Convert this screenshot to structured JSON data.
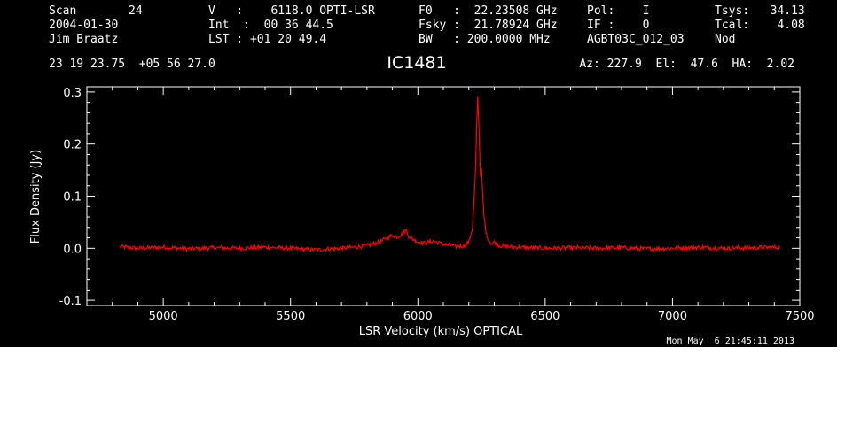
{
  "header": {
    "scan_label": "Scan",
    "scan_value": "24",
    "date": "2004-01-30",
    "observer": "Jim Braatz",
    "velocity": "V   :    6118.0 OPTI-LSR",
    "int_time": "Int  :  00 36 44.5",
    "lst": "LST : +01 20 49.4",
    "f0": "F0   :  22.23508 GHz",
    "fsky": "Fsky :  21.78924 GHz",
    "bw": "BW   : 200.0000 MHz",
    "pol": "Pol:    I",
    "if": "IF :    0",
    "project": "AGBT03C_012_03",
    "tsys": "Tsys:   34.13",
    "tcal": "Tcal:    4.08",
    "mode": "Nod",
    "coords": "23 19 23.75  +05 56 27.0",
    "source": "IC1481",
    "pointing": "Az: 227.9  El:  47.6  HA:  2.02",
    "timestamp": "Mon May  6 21:45:11 2013"
  },
  "colors": {
    "background": "#000000",
    "foreground": "#ffffff",
    "spectrum": "#ff0000"
  },
  "chart_data": {
    "type": "line",
    "title": "IC1481",
    "xlabel": "LSR Velocity (km/s) OPTICAL",
    "ylabel": "Flux Density (Jy)",
    "xlim": [
      4700,
      7500
    ],
    "ylim": [
      -0.11,
      0.31
    ],
    "x_ticks": [
      5000,
      5500,
      6000,
      6500,
      7000,
      7500
    ],
    "x_tick_labels": [
      "5000",
      "5500",
      "6000",
      "6500",
      "7000",
      "7500"
    ],
    "y_ticks": [
      -0.1,
      0.0,
      0.1,
      0.2,
      0.3
    ],
    "y_tick_labels": [
      "-0.1",
      "0.0",
      "0.1",
      "0.2",
      "0.3"
    ],
    "grid": false,
    "series": [
      {
        "color": "#ff0000",
        "x": [
          4830,
          4900,
          5000,
          5100,
          5200,
          5300,
          5400,
          5500,
          5550,
          5600,
          5650,
          5700,
          5750,
          5800,
          5850,
          5880,
          5900,
          5920,
          5940,
          5955,
          5965,
          5980,
          6000,
          6030,
          6060,
          6090,
          6120,
          6150,
          6180,
          6200,
          6215,
          6225,
          6230,
          6235,
          6240,
          6243,
          6246,
          6250,
          6255,
          6260,
          6265,
          6270,
          6280,
          6290,
          6300,
          6320,
          6350,
          6400,
          6500,
          6600,
          6700,
          6800,
          6900,
          7000,
          7100,
          7200,
          7300,
          7420
        ],
        "y": [
          0.003,
          0.0,
          0.002,
          -0.001,
          0.001,
          0.0,
          0.002,
          0.0,
          -0.002,
          -0.003,
          -0.001,
          0.0,
          0.002,
          0.005,
          0.012,
          0.02,
          0.025,
          0.022,
          0.028,
          0.035,
          0.022,
          0.018,
          0.012,
          0.01,
          0.014,
          0.009,
          0.006,
          0.004,
          0.004,
          0.012,
          0.04,
          0.13,
          0.21,
          0.29,
          0.23,
          0.18,
          0.14,
          0.15,
          0.1,
          0.06,
          0.04,
          0.025,
          0.015,
          0.008,
          0.012,
          0.005,
          0.003,
          0.002,
          0.0,
          0.001,
          0.0,
          0.001,
          -0.001,
          0.0,
          0.002,
          0.0,
          0.001,
          0.002
        ]
      }
    ]
  }
}
